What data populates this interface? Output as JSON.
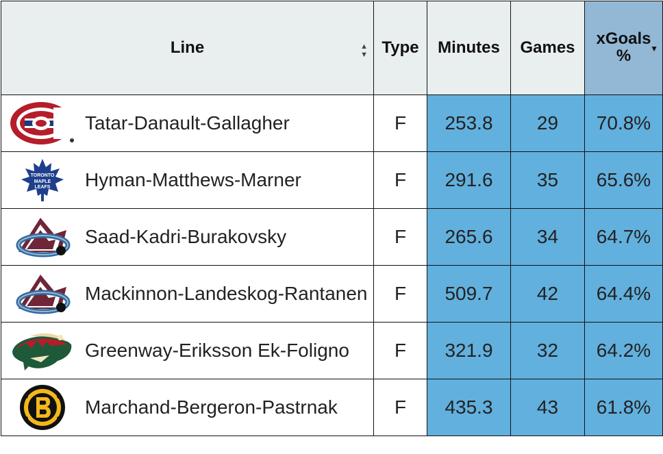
{
  "headers": {
    "line": "Line",
    "type": "Type",
    "minutes": "Minutes",
    "games": "Games",
    "xgoals": "xGoals %"
  },
  "sort_icons": {
    "line": "sort-both-icon",
    "xgoals": "sort-desc-icon"
  },
  "colors": {
    "header_bg": "#e9efee",
    "sorted_header_bg": "#92b8d6",
    "metric_bg": "#62b0de"
  },
  "rows": [
    {
      "team_logo": "montreal-canadiens-logo-icon",
      "line": "Tatar-Danault-Gallagher",
      "type": "F",
      "minutes": "253.8",
      "games": "29",
      "xgoals_pct": "70.8%"
    },
    {
      "team_logo": "toronto-maple-leafs-logo-icon",
      "line": "Hyman-Matthews-Marner",
      "type": "F",
      "minutes": "291.6",
      "games": "35",
      "xgoals_pct": "65.6%"
    },
    {
      "team_logo": "colorado-avalanche-logo-icon",
      "line": "Saad-Kadri-Burakovsky",
      "type": "F",
      "minutes": "265.6",
      "games": "34",
      "xgoals_pct": "64.7%"
    },
    {
      "team_logo": "colorado-avalanche-logo-icon",
      "line": "Mackinnon-Landeskog-Rantanen",
      "type": "F",
      "minutes": "509.7",
      "games": "42",
      "xgoals_pct": "64.4%"
    },
    {
      "team_logo": "minnesota-wild-logo-icon",
      "line": "Greenway-Eriksson Ek-Foligno",
      "type": "F",
      "minutes": "321.9",
      "games": "32",
      "xgoals_pct": "64.2%"
    },
    {
      "team_logo": "boston-bruins-logo-icon",
      "line": "Marchand-Bergeron-Pastrnak",
      "type": "F",
      "minutes": "435.3",
      "games": "43",
      "xgoals_pct": "61.8%"
    }
  ]
}
